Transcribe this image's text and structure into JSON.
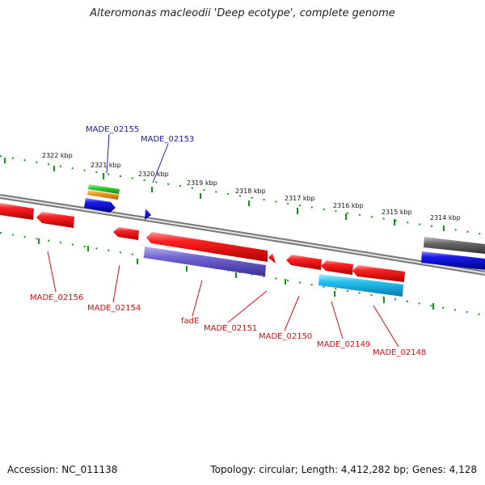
{
  "title": "Alteromonas macleodii 'Deep ecotype', complete genome",
  "footer": {
    "accession": "Accession: NC_011138",
    "summary": "Topology: circular; Length: 4,412,282 bp; Genes: 4,128"
  },
  "colors": {
    "forward_label": "#1a1aa6",
    "reverse_label": "#cc1111",
    "gene_red": "#ee1111",
    "gene_blue": "#1515dd",
    "gene_purple": "#7060cc",
    "gene_cyan": "#22bbee",
    "gene_green": "#33cc33",
    "gene_orange": "#ee9922",
    "gene_gray": "#666666",
    "tick_green": "#119911",
    "backbone": "#888888"
  },
  "scale": {
    "labels": [
      "2322 kbp",
      "2321 kbp",
      "2320 kbp",
      "2319 kbp",
      "2318 kbp",
      "2317 kbp",
      "2316 kbp",
      "2315 kbp",
      "2314 kbp"
    ]
  },
  "gene_labels": {
    "made_02155": "MADE_02155",
    "made_02153": "MADE_02153",
    "made_02156": "MADE_02156",
    "made_02154": "MADE_02154",
    "fade": "fadE",
    "made_02151": "MADE_02151",
    "made_02150": "MADE_02150",
    "made_02149": "MADE_02149",
    "made_02148": "MADE_02148"
  }
}
